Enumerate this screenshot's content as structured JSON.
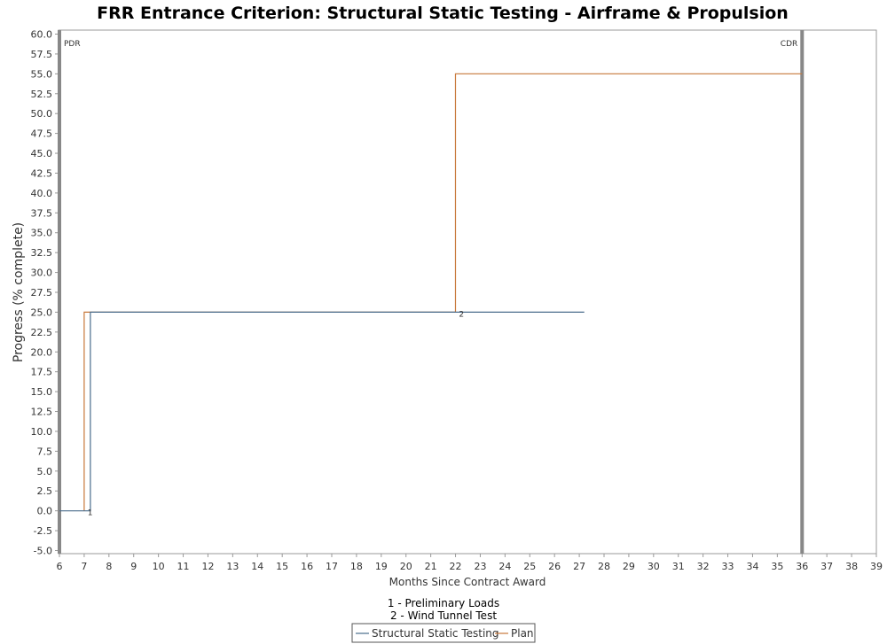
{
  "chart_data": {
    "type": "line",
    "step": true,
    "title": "FRR Entrance Criterion: Structural Static Testing - Airframe & Propulsion",
    "xlabel": "Months Since Contract Award",
    "ylabel": "Progress (% complete)",
    "xlim": [
      6,
      39
    ],
    "ylim": [
      -5,
      60
    ],
    "x_ticks": [
      6,
      7,
      8,
      9,
      10,
      11,
      12,
      13,
      14,
      15,
      16,
      17,
      18,
      19,
      20,
      21,
      22,
      23,
      24,
      25,
      26,
      27,
      28,
      29,
      30,
      31,
      32,
      33,
      34,
      35,
      36,
      37,
      38,
      39
    ],
    "y_ticks": [
      -5.0,
      -2.5,
      0.0,
      2.5,
      5.0,
      7.5,
      10.0,
      12.5,
      15.0,
      17.5,
      20.0,
      22.5,
      25.0,
      27.5,
      30.0,
      32.5,
      35.0,
      37.5,
      40.0,
      42.5,
      45.0,
      47.5,
      50.0,
      52.5,
      55.0,
      57.5,
      60.0
    ],
    "series": [
      {
        "name": "Structural Static Testing",
        "color": "#4a6d8c",
        "points": [
          [
            6.0,
            0
          ],
          [
            7.25,
            0
          ],
          [
            7.25,
            25
          ],
          [
            27.2,
            25
          ]
        ]
      },
      {
        "name": "Plan",
        "color": "#c8783a",
        "points": [
          [
            7.0,
            0
          ],
          [
            7.0,
            25
          ],
          [
            22.0,
            25
          ],
          [
            22.0,
            55
          ],
          [
            36.0,
            55
          ]
        ]
      }
    ],
    "milestones": [
      {
        "label": "PDR",
        "x": 6.0
      },
      {
        "label": "CDR",
        "x": 36.0
      }
    ],
    "point_markers": [
      {
        "label": "1",
        "x": 7.1,
        "y": 0
      },
      {
        "label": "2",
        "x": 22.1,
        "y": 25
      }
    ],
    "notes": [
      "1 - Preliminary Loads",
      "2 - Wind Tunnel Test"
    ],
    "legend": {
      "position": "bottom",
      "entries": [
        "Structural Static Testing",
        "Plan"
      ]
    },
    "grid": false
  }
}
